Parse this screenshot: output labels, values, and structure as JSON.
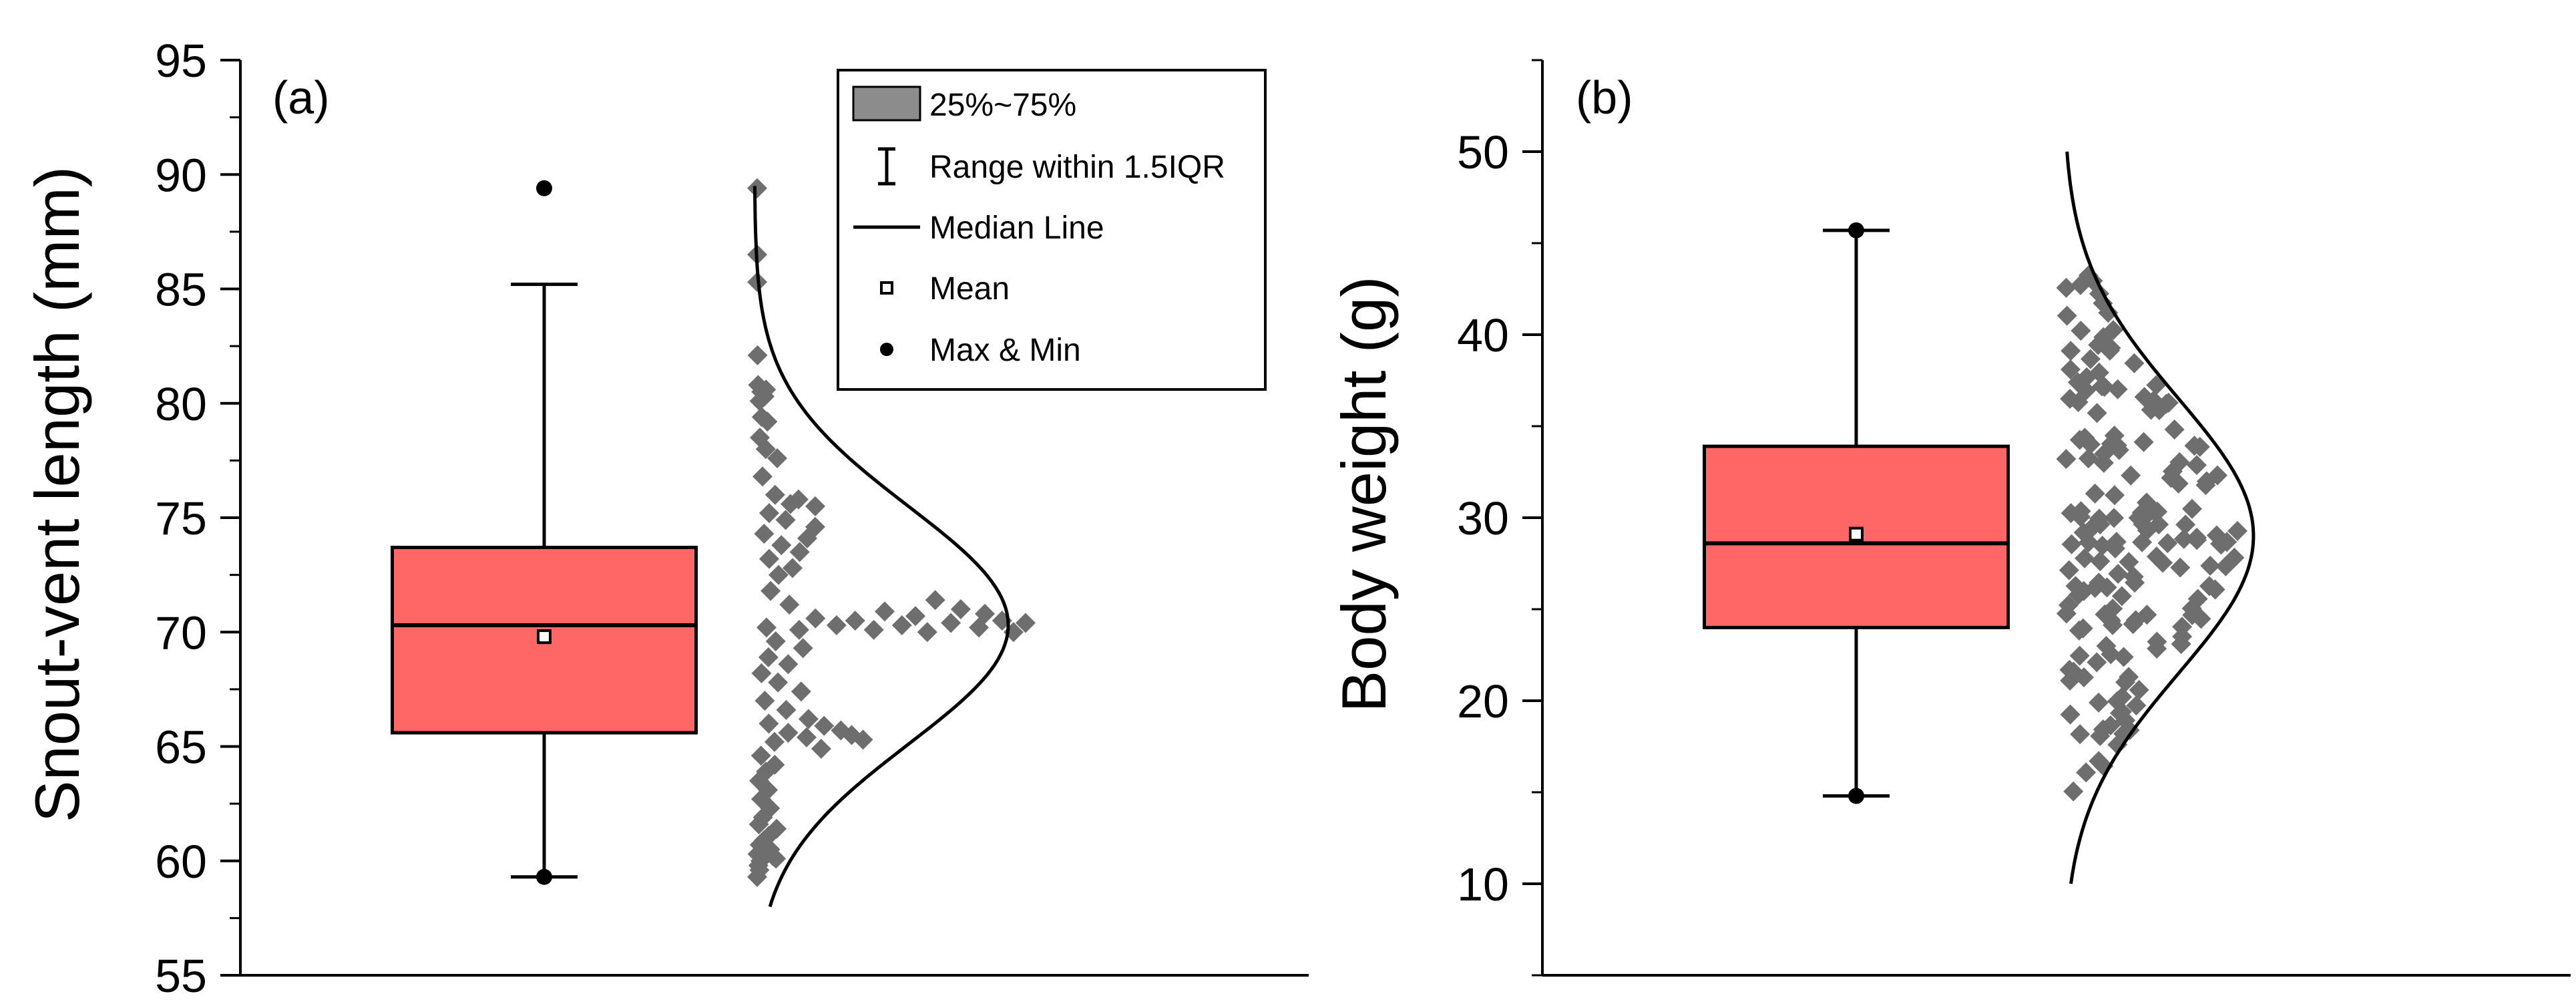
{
  "chart_data": [
    {
      "type": "box",
      "panel_label": "(a)",
      "ylabel": "Snout-vent length (mm)",
      "ylim": [
        55,
        95
      ],
      "yticks": [
        55,
        60,
        65,
        70,
        75,
        80,
        85,
        90,
        95
      ],
      "box": {
        "q1": 65.6,
        "median": 70.3,
        "q3": 73.7,
        "mean": 69.8,
        "whisker_low": 59.3,
        "whisker_high": 85.2,
        "min": 59.3,
        "max": 89.4,
        "fill": "#ff6666"
      },
      "distribution_curve": {
        "mean": 70.3,
        "sd": 5.2,
        "from": 58.0,
        "to": 89.5
      },
      "points": [
        {
          "v": 89.4,
          "o": 0.02
        },
        {
          "v": 86.5,
          "o": 0.02
        },
        {
          "v": 85.3,
          "o": 0.01
        },
        {
          "v": 82.1,
          "o": 0.02
        },
        {
          "v": 80.8,
          "o": 0.03
        },
        {
          "v": 80.5,
          "o": 0.12
        },
        {
          "v": 80.3,
          "o": 0.2
        },
        {
          "v": 80.6,
          "o": 0.27
        },
        {
          "v": 80.1,
          "o": 0.06
        },
        {
          "v": 79.4,
          "o": 0.09
        },
        {
          "v": 79.2,
          "o": 0.19
        },
        {
          "v": 78.5,
          "o": 0.04
        },
        {
          "v": 78.0,
          "o": 0.11
        },
        {
          "v": 77.6,
          "o": 0.23
        },
        {
          "v": 76.8,
          "o": 0.05
        },
        {
          "v": 76.0,
          "o": 0.14
        },
        {
          "v": 75.8,
          "o": 0.31
        },
        {
          "v": 75.5,
          "o": 0.41
        },
        {
          "v": 75.2,
          "o": 0.08
        },
        {
          "v": 75.6,
          "o": 0.24
        },
        {
          "v": 74.9,
          "o": 0.18
        },
        {
          "v": 74.6,
          "o": 0.35
        },
        {
          "v": 74.3,
          "o": 0.04
        },
        {
          "v": 74.1,
          "o": 0.28
        },
        {
          "v": 73.8,
          "o": 0.13
        },
        {
          "v": 73.5,
          "o": 0.22
        },
        {
          "v": 73.2,
          "o": 0.06
        },
        {
          "v": 72.8,
          "o": 0.17
        },
        {
          "v": 72.5,
          "o": 0.1
        },
        {
          "v": 71.8,
          "o": 0.06
        },
        {
          "v": 71.4,
          "o": 0.78
        },
        {
          "v": 71.2,
          "o": 0.14
        },
        {
          "v": 71.0,
          "o": 0.88
        },
        {
          "v": 70.9,
          "o": 0.55
        },
        {
          "v": 70.8,
          "o": 0.98
        },
        {
          "v": 70.7,
          "o": 0.68
        },
        {
          "v": 70.6,
          "o": 0.25
        },
        {
          "v": 70.5,
          "o": 1.05
        },
        {
          "v": 70.5,
          "o": 0.42
        },
        {
          "v": 70.4,
          "o": 0.83
        },
        {
          "v": 70.4,
          "o": 1.15
        },
        {
          "v": 70.3,
          "o": 0.34
        },
        {
          "v": 70.3,
          "o": 0.62
        },
        {
          "v": 70.2,
          "o": 0.04
        },
        {
          "v": 70.2,
          "o": 0.95
        },
        {
          "v": 70.1,
          "o": 0.18
        },
        {
          "v": 70.1,
          "o": 0.5
        },
        {
          "v": 70.0,
          "o": 0.73
        },
        {
          "v": 70.0,
          "o": 1.1
        },
        {
          "v": 69.6,
          "o": 0.08
        },
        {
          "v": 69.3,
          "o": 0.2
        },
        {
          "v": 68.9,
          "o": 0.05
        },
        {
          "v": 68.6,
          "o": 0.14
        },
        {
          "v": 68.2,
          "o": 0.02
        },
        {
          "v": 67.8,
          "o": 0.1
        },
        {
          "v": 67.4,
          "o": 0.22
        },
        {
          "v": 67.0,
          "o": 0.04
        },
        {
          "v": 66.6,
          "o": 0.16
        },
        {
          "v": 66.2,
          "o": 0.3
        },
        {
          "v": 66.0,
          "o": 0.07
        },
        {
          "v": 65.9,
          "o": 0.41
        },
        {
          "v": 65.7,
          "o": 0.53
        },
        {
          "v": 65.6,
          "o": 0.2
        },
        {
          "v": 65.5,
          "o": 0.62
        },
        {
          "v": 65.4,
          "o": 0.33
        },
        {
          "v": 65.3,
          "o": 0.72
        },
        {
          "v": 65.2,
          "o": 0.12
        },
        {
          "v": 64.9,
          "o": 0.47
        },
        {
          "v": 64.6,
          "o": 0.03
        },
        {
          "v": 64.2,
          "o": 0.15
        },
        {
          "v": 63.9,
          "o": 0.08
        },
        {
          "v": 63.5,
          "o": 0.02
        },
        {
          "v": 63.1,
          "o": 0.12
        },
        {
          "v": 62.7,
          "o": 0.05
        },
        {
          "v": 62.3,
          "o": 0.18
        },
        {
          "v": 61.9,
          "o": 0.09
        },
        {
          "v": 61.6,
          "o": 0.03
        },
        {
          "v": 61.4,
          "o": 0.36
        },
        {
          "v": 61.1,
          "o": 0.24
        },
        {
          "v": 60.9,
          "o": 0.15
        },
        {
          "v": 60.7,
          "o": 0.06
        },
        {
          "v": 60.5,
          "o": 0.33
        },
        {
          "v": 60.4,
          "o": 0.19
        },
        {
          "v": 60.3,
          "o": 0.01
        },
        {
          "v": 60.2,
          "o": 0.45
        },
        {
          "v": 60.1,
          "o": 0.55
        },
        {
          "v": 60.0,
          "o": 0.1
        },
        {
          "v": 59.8,
          "o": 0.04
        },
        {
          "v": 59.6,
          "o": 0.08
        },
        {
          "v": 59.3,
          "o": 0.0
        }
      ]
    },
    {
      "type": "box",
      "panel_label": "(b)",
      "ylabel": "Body weight (g)",
      "ylim": [
        5,
        55
      ],
      "yticks": [
        10,
        20,
        30,
        40,
        50
      ],
      "box": {
        "q1": 24.0,
        "median": 28.6,
        "q3": 33.9,
        "mean": 29.1,
        "whisker_low": 14.8,
        "whisker_high": 45.7,
        "min": 14.8,
        "max": 45.7,
        "fill": "#ff6666"
      },
      "distribution_curve": {
        "mean": 29.0,
        "sd": 7.5,
        "from": 10.0,
        "to": 50.0
      },
      "points": []
    }
  ],
  "legend": {
    "items": [
      {
        "symbol": "box",
        "label": "25%~75%"
      },
      {
        "symbol": "whisker",
        "label": "Range within 1.5IQR"
      },
      {
        "symbol": "line",
        "label": "Median Line"
      },
      {
        "symbol": "square",
        "label": "Mean"
      },
      {
        "symbol": "dot",
        "label": "Max & Min"
      }
    ]
  },
  "colors": {
    "box_fill": "#ff6666",
    "scatter": "#6e6e6e",
    "line": "#000000",
    "legend_box": "#8c8c8c"
  }
}
